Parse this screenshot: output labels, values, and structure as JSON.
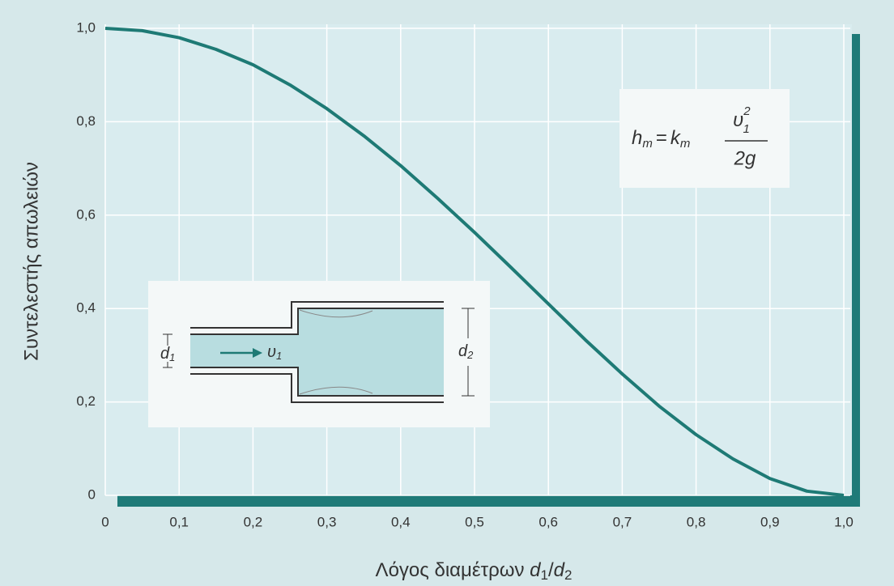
{
  "chart_data": {
    "type": "line",
    "y_label": "Συντελεστής απωλειών",
    "x_label": {
      "text": "Λόγος διαμέτρων",
      "var1": "d",
      "sub1": "1",
      "slash": "/",
      "var2": "d",
      "sub2": "2"
    },
    "x": [
      0,
      0.05,
      0.1,
      0.15,
      0.2,
      0.25,
      0.3,
      0.35,
      0.4,
      0.45,
      0.5,
      0.55,
      0.6,
      0.65,
      0.7,
      0.75,
      0.8,
      0.85,
      0.9,
      0.95,
      1.0
    ],
    "values": [
      1.0,
      0.995,
      0.98,
      0.955,
      0.922,
      0.879,
      0.828,
      0.77,
      0.706,
      0.636,
      0.563,
      0.487,
      0.41,
      0.333,
      0.26,
      0.191,
      0.13,
      0.078,
      0.036,
      0.009,
      0
    ],
    "color": "#1e7a75",
    "xlim": [
      0,
      1.0
    ],
    "ylim": [
      0,
      1.0
    ],
    "xticks": [
      0,
      {
        "value": 0.1,
        "label": "0,1"
      },
      {
        "value": 0.2,
        "label": "0,2"
      },
      {
        "value": 0.3,
        "label": "0,3"
      },
      {
        "value": 0.4,
        "label": "0,4"
      },
      {
        "value": 0.5,
        "label": "0,5"
      },
      {
        "value": 0.6,
        "label": "0,6"
      },
      {
        "value": 0.7,
        "label": "0,7"
      },
      {
        "value": 0.8,
        "label": "0,8"
      },
      {
        "value": 0.9,
        "label": "0,9"
      },
      {
        "value": 1.0,
        "label": "1,0"
      }
    ],
    "yticks": [
      0,
      {
        "value": 0.2,
        "label": "0,2"
      },
      {
        "value": 0.4,
        "label": "0,4"
      },
      {
        "value": 0.6,
        "label": "0,6"
      },
      {
        "value": 0.8,
        "label": "0,8"
      },
      {
        "value": 1.0,
        "label": "1,0"
      }
    ],
    "grid": true,
    "annotations": {
      "formula": {
        "h": "h",
        "h_sub": "m",
        "eq": "=",
        "k": "k",
        "k_sub": "m",
        "u": "υ",
        "u_sub": "1",
        "u_sup": "2",
        "den": "2g"
      },
      "inset": {
        "d1": "d",
        "d1_sub": "1",
        "u1": "υ",
        "u1_sub": "1",
        "d2": "d",
        "d2_sub": "2"
      }
    }
  }
}
